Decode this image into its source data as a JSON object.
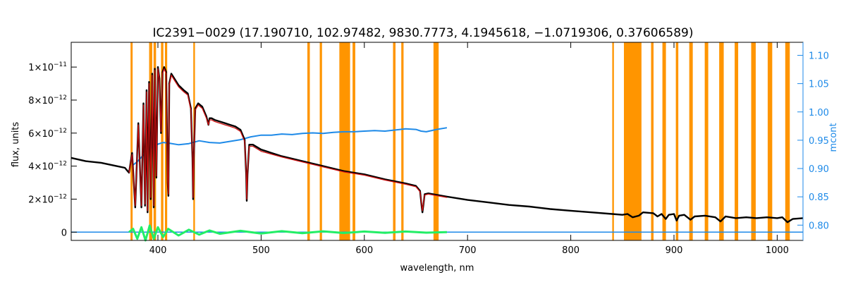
{
  "chart_data": {
    "type": "line",
    "title": "IC2391−0029   (17.190710, 102.97482, 9830.7773, 4.1945618, −1.0719306, 0.37606589)",
    "xlabel": "wavelength, nm",
    "ylabel": "flux, units",
    "y2label": "mcont",
    "xlim": [
      316,
      1025
    ],
    "ylim": [
      -5e-13,
      1.15e-11
    ],
    "y2lim": [
      0.773,
      1.123
    ],
    "x_ticks": [
      400,
      500,
      600,
      700,
      800,
      900,
      1000
    ],
    "y_ticks": [
      {
        "value": 0,
        "mantissa": "0",
        "exp": ""
      },
      {
        "value": 2e-12,
        "mantissa": "2×10",
        "exp": "−12"
      },
      {
        "value": 4e-12,
        "mantissa": "4×10",
        "exp": "−12"
      },
      {
        "value": 6e-12,
        "mantissa": "6×10",
        "exp": "−12"
      },
      {
        "value": 8e-12,
        "mantissa": "8×10",
        "exp": "−12"
      },
      {
        "value": 1e-11,
        "mantissa": "1×10",
        "exp": "−11"
      }
    ],
    "y2_ticks": [
      "0.80",
      "0.85",
      "0.90",
      "0.95",
      "1.00",
      "1.05",
      "1.10"
    ],
    "colors": {
      "observed": "#000000",
      "model": "#d01010",
      "mcont": "#1e8ae8",
      "residual": "#22ee66",
      "masked": "#ff9500"
    },
    "masked_regions": [
      [
        373.5,
        375.5
      ],
      [
        391.5,
        394.5
      ],
      [
        395.8,
        398.2
      ],
      [
        403,
        405.3
      ],
      [
        406.8,
        409
      ],
      [
        434.3,
        435.9
      ],
      [
        544.8,
        547.2
      ],
      [
        556.8,
        559
      ],
      [
        575.8,
        586.2
      ],
      [
        588.6,
        591.2
      ],
      [
        627.8,
        630.2
      ],
      [
        635.8,
        638
      ],
      [
        667,
        672
      ],
      [
        840.2,
        841.8
      ],
      [
        851.5,
        868.5
      ],
      [
        877.8,
        880.2
      ],
      [
        888.8,
        892.2
      ],
      [
        901.8,
        904.2
      ],
      [
        914.8,
        918.2
      ],
      [
        929.8,
        933.2
      ],
      [
        943.8,
        948.2
      ],
      [
        958.8,
        962.2
      ],
      [
        974.8,
        979.2
      ],
      [
        990.8,
        995.2
      ],
      [
        1007.8,
        1012.2
      ]
    ],
    "series": [
      {
        "role": "observed",
        "x": [
          316,
          330,
          345,
          360,
          368,
          372,
          375,
          378,
          381,
          384,
          386,
          387.5,
          389,
          390,
          391.5,
          393,
          394.5,
          396,
          397,
          398.5,
          400,
          401.5,
          403,
          404.5,
          406,
          408,
          409.5,
          410.2,
          411,
          413,
          416,
          420,
          425,
          429,
          432,
          433.5,
          434.1,
          434.8,
          436.2,
          439,
          443,
          447,
          449,
          450,
          452,
          455,
          460,
          465,
          470,
          475,
          480,
          484,
          485.5,
          486.1,
          486.8,
          488.5,
          492,
          500,
          520,
          540,
          560,
          580,
          600,
          620,
          640,
          650,
          654,
          655.5,
          656.3,
          657.1,
          658.5,
          662,
          680,
          700,
          720,
          740,
          760,
          780,
          800,
          820,
          840,
          850,
          855,
          860,
          866,
          870,
          880,
          884,
          888,
          892,
          895,
          900,
          902.5,
          905,
          910,
          916,
          920,
          930,
          940,
          945,
          950,
          955,
          960,
          970,
          980,
          990,
          1000,
          1005,
          1010,
          1015,
          1025
        ],
        "y": [
          4.5e-12,
          4.3e-12,
          4.2e-12,
          4e-12,
          3.9e-12,
          3.6e-12,
          4.8e-12,
          1.5e-12,
          6.6e-12,
          1.5e-12,
          7.8e-12,
          1.6e-12,
          8.6e-12,
          1.2e-12,
          9.1e-12,
          2e-12,
          9.6e-12,
          1.5e-12,
          9.9e-12,
          3.3e-12,
          1e-11,
          9.3e-12,
          6e-12,
          9.7e-12,
          1e-11,
          9.7e-12,
          3e-12,
          2.2e-12,
          9e-12,
          9.6e-12,
          9.3e-12,
          8.9e-12,
          8.6e-12,
          8.4e-12,
          7.5e-12,
          4.5e-12,
          2e-12,
          4.5e-12,
          7.5e-12,
          7.8e-12,
          7.6e-12,
          7e-12,
          6.5e-12,
          6.9e-12,
          6.9e-12,
          6.8e-12,
          6.7e-12,
          6.6e-12,
          6.5e-12,
          6.4e-12,
          6.2e-12,
          5.6e-12,
          3.5e-12,
          1.9e-12,
          3.5e-12,
          5.3e-12,
          5.3e-12,
          5e-12,
          4.6e-12,
          4.3e-12,
          4e-12,
          3.7e-12,
          3.5e-12,
          3.2e-12,
          2.95e-12,
          2.8e-12,
          2.5e-12,
          1.6e-12,
          1.2e-12,
          1.6e-12,
          2.3e-12,
          2.35e-12,
          2.15e-12,
          1.95e-12,
          1.8e-12,
          1.65e-12,
          1.55e-12,
          1.4e-12,
          1.3e-12,
          1.2e-12,
          1.1e-12,
          1.05e-12,
          1.1e-12,
          9e-13,
          1e-12,
          1.2e-12,
          1.15e-12,
          9.5e-13,
          1.1e-12,
          8e-13,
          1.05e-12,
          1.1e-12,
          7e-13,
          1e-12,
          1.05e-12,
          7.5e-13,
          9.5e-13,
          1e-12,
          9e-13,
          6.5e-13,
          9.5e-13,
          9e-13,
          8.5e-13,
          9e-13,
          8.5e-13,
          9e-13,
          8.5e-13,
          9e-13,
          6e-13,
          8e-13,
          8.5e-13
        ]
      },
      {
        "role": "model",
        "x": [
          372,
          375,
          378,
          381,
          384,
          386,
          387.5,
          389,
          390,
          391.5,
          393,
          394.5,
          396,
          397,
          398.5,
          400,
          401.5,
          403,
          404.5,
          406,
          408,
          409.5,
          410.2,
          411,
          413,
          416,
          420,
          425,
          429,
          432,
          433.5,
          434.1,
          434.8,
          436.2,
          439,
          443,
          447,
          449,
          450,
          452,
          455,
          460,
          465,
          470,
          475,
          480,
          484,
          485.5,
          486.1,
          486.8,
          488.5,
          492,
          500,
          520,
          540,
          560,
          580,
          600,
          620,
          640,
          650,
          654,
          655.5,
          656.3,
          657.1,
          658.5,
          662,
          680
        ],
        "y": [
          3.6e-12,
          4.7e-12,
          1.6e-12,
          6.5e-12,
          1.6e-12,
          7.7e-12,
          1.7e-12,
          8.5e-12,
          1.3e-12,
          9e-12,
          2.1e-12,
          9.5e-12,
          1.6e-12,
          9.8e-12,
          3.4e-12,
          9.9e-12,
          9.2e-12,
          6.1e-12,
          9.6e-12,
          9.9e-12,
          9.6e-12,
          3.1e-12,
          2.3e-12,
          8.9e-12,
          9.5e-12,
          9.2e-12,
          8.8e-12,
          8.5e-12,
          8.3e-12,
          7.4e-12,
          4.6e-12,
          2.1e-12,
          4.6e-12,
          7.4e-12,
          7.7e-12,
          7.5e-12,
          6.9e-12,
          6.5e-12,
          6.8e-12,
          6.8e-12,
          6.7e-12,
          6.6e-12,
          6.5e-12,
          6.4e-12,
          6.3e-12,
          6.1e-12,
          5.5e-12,
          3.6e-12,
          2e-12,
          3.6e-12,
          5.2e-12,
          5.2e-12,
          4.9e-12,
          4.55e-12,
          4.25e-12,
          3.95e-12,
          3.65e-12,
          3.45e-12,
          3.15e-12,
          2.9e-12,
          2.75e-12,
          2.45e-12,
          1.7e-12,
          1.3e-12,
          1.7e-12,
          2.25e-12,
          2.3e-12,
          2.1e-12
        ]
      },
      {
        "role": "mcont",
        "axis": "right",
        "x": [
          375,
          380,
          385,
          390,
          395,
          400,
          405,
          410,
          420,
          430,
          440,
          450,
          460,
          470,
          480,
          490,
          500,
          510,
          520,
          530,
          540,
          550,
          560,
          570,
          580,
          590,
          600,
          610,
          620,
          630,
          640,
          650,
          655,
          660,
          670,
          680
        ],
        "y": [
          0.905,
          0.912,
          0.922,
          0.931,
          0.938,
          0.943,
          0.946,
          0.945,
          0.942,
          0.944,
          0.949,
          0.946,
          0.945,
          0.948,
          0.951,
          0.956,
          0.959,
          0.959,
          0.961,
          0.96,
          0.962,
          0.963,
          0.962,
          0.964,
          0.965,
          0.965,
          0.966,
          0.967,
          0.966,
          0.968,
          0.97,
          0.969,
          0.966,
          0.965,
          0.969,
          0.972
        ]
      },
      {
        "role": "residual",
        "x": [
          372,
          376,
          380,
          384,
          388,
          392,
          396,
          400,
          405,
          410,
          420,
          430,
          440,
          450,
          460,
          480,
          500,
          520,
          540,
          560,
          580,
          600,
          620,
          640,
          660,
          680
        ],
        "y": [
          0.0,
          2e-13,
          -4e-13,
          3e-13,
          -5e-13,
          4e-13,
          -4e-13,
          3e-13,
          -3e-13,
          2e-13,
          -2e-13,
          1.5e-13,
          -1.5e-13,
          1e-13,
          -1e-13,
          8e-14,
          -8e-14,
          6e-14,
          -6e-14,
          5e-14,
          -5e-14,
          4e-14,
          -4e-14,
          4e-14,
          -3e-14,
          0.0
        ]
      },
      {
        "role": "zero-line",
        "x": [
          316,
          1025
        ],
        "y": [
          0,
          0
        ]
      }
    ]
  }
}
